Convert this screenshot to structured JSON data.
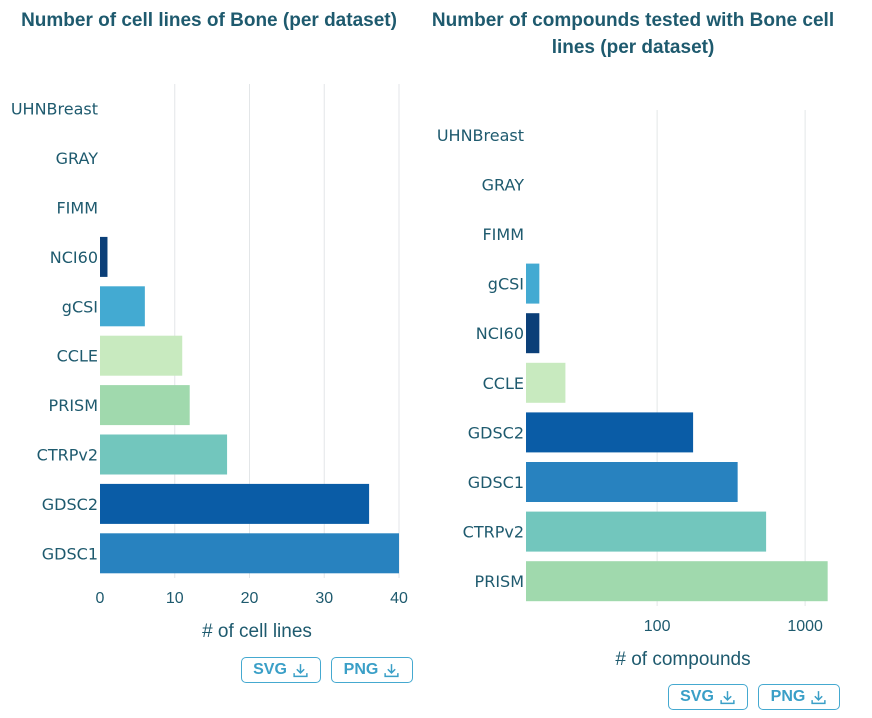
{
  "chart_data": [
    {
      "type": "bar",
      "orientation": "horizontal",
      "title": "Number of cell lines of Bone (per dataset)",
      "xlabel": "# of cell lines",
      "xscale": "linear",
      "xlim": [
        0,
        40
      ],
      "xticks": [
        0,
        10,
        20,
        30,
        40
      ],
      "grid": true,
      "categories": [
        "UHNBreast",
        "GRAY",
        "FIMM",
        "NCI60",
        "gCSI",
        "CCLE",
        "PRISM",
        "CTRPv2",
        "GDSC2",
        "GDSC1"
      ],
      "values": [
        0,
        0,
        0,
        1,
        6,
        11,
        12,
        17,
        36,
        40
      ],
      "colors": [
        "#2f84c0",
        "#2f84c0",
        "#2f84c0",
        "#0b3f78",
        "#43aad2",
        "#c8eabf",
        "#a0d9ad",
        "#72c6bd",
        "#0a5ca6",
        "#2882bf"
      ]
    },
    {
      "type": "bar",
      "orientation": "horizontal",
      "title": "Number of compounds tested with Bone cell lines (per dataset)",
      "xlabel": "# of compounds",
      "xscale": "log",
      "xlim": [
        13,
        1450
      ],
      "xticks": [
        100,
        1000
      ],
      "grid": true,
      "categories": [
        "UHNBreast",
        "GRAY",
        "FIMM",
        "gCSI",
        "NCI60",
        "CCLE",
        "GDSC2",
        "GDSC1",
        "CTRPv2",
        "PRISM"
      ],
      "values": [
        0,
        0,
        0,
        16,
        16,
        24,
        175,
        350,
        545,
        1420
      ],
      "colors": [
        "#2f84c0",
        "#2f84c0",
        "#2f84c0",
        "#43aad2",
        "#0b3f78",
        "#c8eabf",
        "#0a5ca6",
        "#2882bf",
        "#72c6bd",
        "#a0d9ad"
      ]
    }
  ],
  "buttons": {
    "svg_label": "SVG",
    "png_label": "PNG",
    "download_icon": "download-icon"
  }
}
